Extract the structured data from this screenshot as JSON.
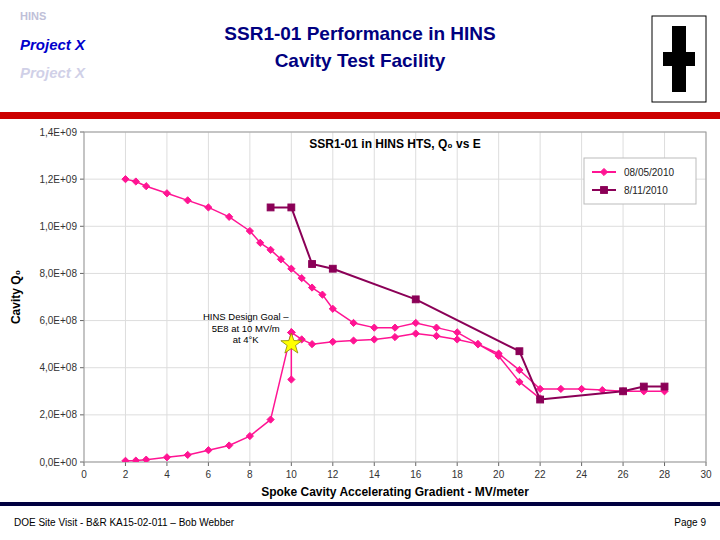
{
  "chart_data": {
    "type": "line",
    "title": "SSR1-01 Performance in HINS\nCavity Test Facility",
    "subtitle": "SSR1-01 in HINS HTS, Q₀ vs E",
    "header": [
      "HINS",
      "Project X",
      "Project X"
    ],
    "footer": [
      "DOE Site Visit - B&R KA15-02-011 – Bob Webber",
      "Page 9"
    ],
    "xlabel": "Spoke Cavity Accelerating Gradient - MV/meter",
    "ylabel": "Cavity Q₀",
    "xlim": [
      0,
      30
    ],
    "ylim": [
      0,
      1400000000.0
    ],
    "xticks": [
      0,
      2,
      4,
      6,
      8,
      10,
      12,
      14,
      16,
      18,
      20,
      22,
      24,
      26,
      28,
      30
    ],
    "yticks": [
      {
        "value": 0,
        "label": "0,0E+00"
      },
      {
        "value": 200000000.0,
        "label": "2,0E+08"
      },
      {
        "value": 400000000.0,
        "label": "4,0E+08"
      },
      {
        "value": 600000000.0,
        "label": "6,0E+08"
      },
      {
        "value": 800000000.0,
        "label": "8,0E+08"
      },
      {
        "value": 1000000000.0,
        "label": "1,0E+09"
      },
      {
        "value": 1200000000.0,
        "label": "1,2E+09"
      },
      {
        "value": 1400000000.0,
        "label": "1,4E+09"
      }
    ],
    "grid": true,
    "legend": "upper right",
    "series": [
      {
        "name": "08/05/2010",
        "color": "#FF1493",
        "marker": "diamond",
        "x": [
          2,
          2.5,
          3,
          4,
          5,
          6,
          7,
          8,
          8.5,
          9,
          9.5,
          10,
          10.5,
          11,
          11.5,
          12,
          13,
          14,
          15,
          16,
          17,
          18,
          19,
          20,
          21,
          22,
          null,
          10,
          10.5,
          11,
          12,
          13,
          14,
          15,
          16,
          17,
          18,
          19,
          20,
          21,
          22,
          23,
          24,
          25,
          26,
          27,
          28,
          null,
          2,
          2.5,
          3,
          4,
          5,
          6,
          7,
          8,
          9,
          10,
          null,
          10,
          10
        ],
        "values": [
          1200000000.0,
          1190000000.0,
          1170000000.0,
          1140000000.0,
          1110000000.0,
          1080000000.0,
          1040000000.0,
          980000000.0,
          930000000.0,
          900000000.0,
          860000000.0,
          820000000.0,
          780000000.0,
          740000000.0,
          710000000.0,
          650000000.0,
          590000000.0,
          570000000.0,
          570000000.0,
          590000000.0,
          570000000.0,
          550000000.0,
          500000000.0,
          450000000.0,
          340000000.0,
          270000000.0,
          null,
          550000000.0,
          520000000.0,
          500000000.0,
          510000000.0,
          515000000.0,
          520000000.0,
          530000000.0,
          545000000.0,
          535000000.0,
          520000000.0,
          500000000.0,
          460000000.0,
          390000000.0,
          310000000.0,
          310000000.0,
          310000000.0,
          305000000.0,
          300000000.0,
          300000000.0,
          300000000.0,
          null,
          5000000.0,
          6000000.0,
          10000000.0,
          20000000.0,
          30000000.0,
          50000000.0,
          70000000.0,
          110000000.0,
          180000000.0,
          550000000.0,
          null,
          550000000.0,
          350000000.0
        ]
      },
      {
        "name": "8/11/2010",
        "color": "#8B0057",
        "marker": "square",
        "x": [
          9,
          10,
          11,
          12,
          16,
          21,
          22,
          26,
          27,
          28
        ],
        "values": [
          1080000000.0,
          1080000000.0,
          840000000.0,
          820000000.0,
          690000000.0,
          470000000.0,
          265000000.0,
          300000000.0,
          320000000.0,
          320000000.0
        ]
      },
      {
        "type": "scatter",
        "color": "yellow",
        "marker": "star",
        "x": [
          10
        ],
        "values": [
          500000000.0
        ]
      }
    ],
    "annotations": [
      {
        "text": "HINS Design Goal –\n5E8 at 10 MV/m\nat 4°K",
        "x": 7.8,
        "y": 640000000.0
      }
    ]
  }
}
